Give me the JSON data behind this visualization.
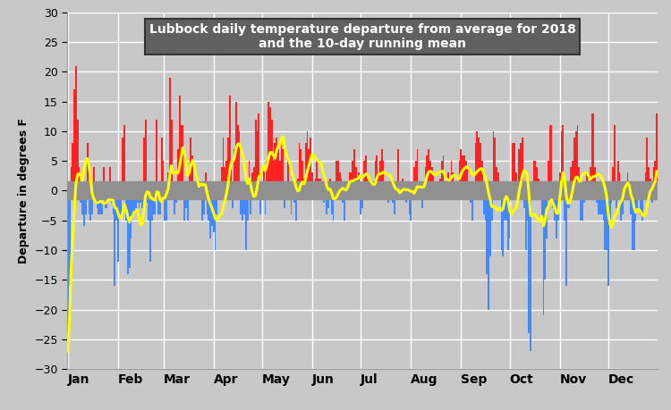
{
  "title_line1": "Lubbock daily temperature departure from average for 2018",
  "title_line2": "and the 10-day running mean",
  "ylabel": "Departure in degrees F",
  "ylim": [
    -30,
    30
  ],
  "yticks": [
    -30,
    -25,
    -20,
    -15,
    -10,
    -5,
    0,
    5,
    10,
    15,
    20,
    25,
    30
  ],
  "bg_color": "#c8c8c8",
  "plot_bg_color": "#c8c8c8",
  "bar_positive_color": "#ff2222",
  "bar_negative_color": "#4488ff",
  "running_mean_color": "#ffff00",
  "running_mean_linewidth": 2.2,
  "title_box_facecolor": "#606060",
  "title_text_color": "#ffffff",
  "zero_band_color": "#909090",
  "daily_departures": [
    -27.0,
    -16.0,
    4.0,
    8.0,
    17.0,
    21.0,
    12.0,
    4.0,
    -2.0,
    -4.0,
    -6.0,
    -4.0,
    8.0,
    -4.0,
    -5.0,
    -4.0,
    4.0,
    -2.0,
    -3.0,
    -4.0,
    -4.0,
    -4.0,
    4.0,
    -3.0,
    -3.0,
    -0.5,
    4.0,
    -2.0,
    -4.0,
    -16.0,
    -5.0,
    -12.0,
    -4.0,
    -4.0,
    9.0,
    11.0,
    -5.0,
    -14.0,
    -13.0,
    -8.0,
    -4.0,
    -4.0,
    -3.0,
    -2.0,
    -3.0,
    -2.0,
    -3.0,
    9.0,
    12.0,
    -2.0,
    -5.0,
    -12.0,
    -5.0,
    -4.0,
    -4.0,
    12.0,
    -4.0,
    -4.0,
    9.0,
    5.0,
    -5.0,
    -5.0,
    3.0,
    19.0,
    12.0,
    -0.5,
    -4.0,
    -2.0,
    7.0,
    16.0,
    11.0,
    11.0,
    -5.0,
    -3.0,
    -5.0,
    4.0,
    9.0,
    6.0,
    -0.5,
    1.0,
    1.0,
    -0.5,
    -0.5,
    -5.0,
    -4.0,
    3.0,
    -4.0,
    -5.0,
    -8.0,
    -6.0,
    -7.0,
    -10.0,
    -4.0,
    -0.5,
    0.5,
    4.0,
    9.0,
    4.0,
    5.0,
    9.0,
    16.0,
    5.0,
    -3.0,
    7.0,
    15.0,
    11.0,
    10.0,
    -4.0,
    -5.0,
    -4.0,
    -10.0,
    -5.0,
    5.0,
    -4.0,
    3.0,
    4.0,
    12.0,
    10.0,
    13.0,
    -4.0,
    -0.5,
    4.0,
    -4.0,
    5.0,
    15.0,
    14.0,
    12.0,
    5.0,
    8.0,
    9.0,
    7.0,
    5.0,
    9.0,
    7.0,
    -3.0,
    1.0,
    5.0,
    -0.5,
    -4.0,
    -1.0,
    -2.0,
    -5.0,
    2.0,
    8.0,
    7.0,
    5.0,
    2.0,
    8.0,
    10.0,
    7.0,
    9.0,
    3.0,
    0.5,
    2.0,
    5.0,
    2.0,
    2.0,
    -0.5,
    -2.0,
    -0.5,
    -4.0,
    -3.0,
    2.0,
    -4.0,
    -5.0,
    1.0,
    5.0,
    5.0,
    3.0,
    2.0,
    -2.0,
    -5.0,
    1.0,
    1.0,
    3.0,
    3.0,
    5.0,
    7.0,
    4.0,
    2.0,
    3.0,
    -4.0,
    -3.0,
    5.0,
    6.0,
    2.0,
    1.0,
    1.0,
    -0.5,
    -0.5,
    5.0,
    6.0,
    3.0,
    5.0,
    7.0,
    5.0,
    -1.0,
    -1.0,
    -2.0,
    -0.5,
    -0.5,
    -2.0,
    -4.0,
    1.0,
    7.0,
    -0.5,
    1.0,
    2.0,
    -1.0,
    -2.0,
    0.5,
    -4.0,
    -5.0,
    0.5,
    4.0,
    5.0,
    7.0,
    1.0,
    -0.5,
    -3.0,
    1.0,
    4.0,
    6.0,
    7.0,
    5.0,
    4.0,
    3.0,
    0.5,
    -0.5,
    0.5,
    2.0,
    5.0,
    6.0,
    -0.5,
    -0.5,
    3.0,
    2.0,
    5.0,
    3.0,
    1.0,
    1.0,
    1.0,
    5.0,
    7.0,
    6.0,
    6.0,
    5.0,
    4.0,
    0.5,
    -2.0,
    -5.0,
    -0.5,
    8.0,
    10.0,
    9.0,
    8.0,
    5.0,
    -4.0,
    -5.0,
    -14.0,
    -20.0,
    -11.0,
    -5.0,
    10.0,
    9.0,
    4.0,
    3.0,
    0.5,
    -10.0,
    -11.0,
    -5.0,
    -5.0,
    -10.0,
    -8.0,
    1.0,
    8.0,
    8.0,
    3.0,
    1.0,
    7.0,
    8.0,
    9.0,
    -3.0,
    -10.0,
    -5.0,
    -24.0,
    -27.0,
    1.0,
    5.0,
    5.0,
    4.0,
    2.0,
    1.0,
    -5.0,
    -21.0,
    -15.0,
    -8.0,
    5.0,
    11.0,
    11.0,
    -3.0,
    -5.0,
    -8.0,
    -5.0,
    3.0,
    10.0,
    11.0,
    -5.0,
    -16.0,
    -3.0,
    -3.0,
    4.0,
    5.0,
    9.0,
    10.0,
    11.0,
    4.0,
    -5.0,
    -5.0,
    -2.0,
    -0.5,
    3.0,
    -0.5,
    4.0,
    13.0,
    13.0,
    4.0,
    -2.0,
    -4.0,
    -4.0,
    -4.0,
    -5.0,
    -10.0,
    -10.0,
    -16.0,
    -5.0,
    -2.0,
    4.0,
    11.0,
    -3.0,
    5.0,
    3.0,
    -5.0,
    -4.0,
    -0.5,
    -0.5,
    3.0,
    -0.5,
    -4.0,
    -10.0,
    -10.0,
    -5.0,
    -3.0,
    -1.0,
    -4.0,
    -5.0,
    -0.5,
    3.0,
    9.0,
    4.0,
    2.0,
    -2.0,
    4.0,
    5.0,
    13.0
  ]
}
